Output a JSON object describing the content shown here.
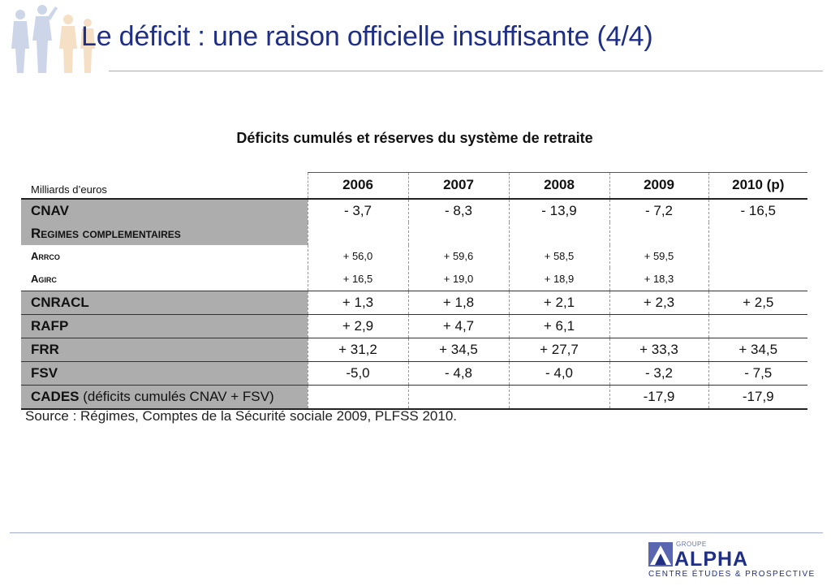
{
  "header": {
    "title": "Le déficit : une raison officielle insuffisante (4/4)"
  },
  "table": {
    "heading": "Déficits cumulés et réserves du système de retraite",
    "unit_label": "Milliards d’euros",
    "columns": [
      "2006",
      "2007",
      "2008",
      "2009",
      "2010 (p)"
    ],
    "rows": [
      {
        "label": "CNAV",
        "values": [
          "- 3,7",
          "- 8,3",
          "- 13,9",
          "- 7,2",
          "- 16,5"
        ]
      },
      {
        "label": "Regimes complementaires",
        "values": [
          "",
          "",
          "",
          "",
          ""
        ]
      },
      {
        "label": "Arrco",
        "values": [
          "+ 56,0",
          "+ 59,6",
          "+ 58,5",
          "+ 59,5",
          ""
        ]
      },
      {
        "label": "Agirc",
        "values": [
          "+ 16,5",
          "+ 19,0",
          "+ 18,9",
          "+ 18,3",
          ""
        ]
      },
      {
        "label": "CNRACL",
        "values": [
          "+ 1,3",
          "+ 1,8",
          "+ 2,1",
          "+ 2,3",
          "+ 2,5"
        ]
      },
      {
        "label": "RAFP",
        "values": [
          "+ 2,9",
          "+ 4,7",
          "+ 6,1",
          "",
          ""
        ]
      },
      {
        "label": "FRR",
        "values": [
          "+ 31,2",
          "+ 34,5",
          "+ 27,7",
          "+ 33,3",
          "+ 34,5"
        ]
      },
      {
        "label": "FSV",
        "values": [
          "-5,0",
          "- 4,8",
          "- 4,0",
          "- 3,2",
          "- 7,5"
        ]
      },
      {
        "label": "CADES",
        "label_note": " (déficits cumulés CNAV + FSV)",
        "values": [
          "",
          "",
          "",
          "-17,9",
          "-17,9"
        ]
      }
    ]
  },
  "source": "Source : Régimes, Comptes de la Sécurité sociale 2009, PLFSS 2010.",
  "logo": {
    "groupe": "GROUPE",
    "name": "ALPHA",
    "subtitle": "CENTRE ÉTUDES & PROSPECTIVE"
  },
  "colors": {
    "title": "#1f2f86",
    "rule": "#a2a9d0",
    "label_shading": "#adadad"
  }
}
